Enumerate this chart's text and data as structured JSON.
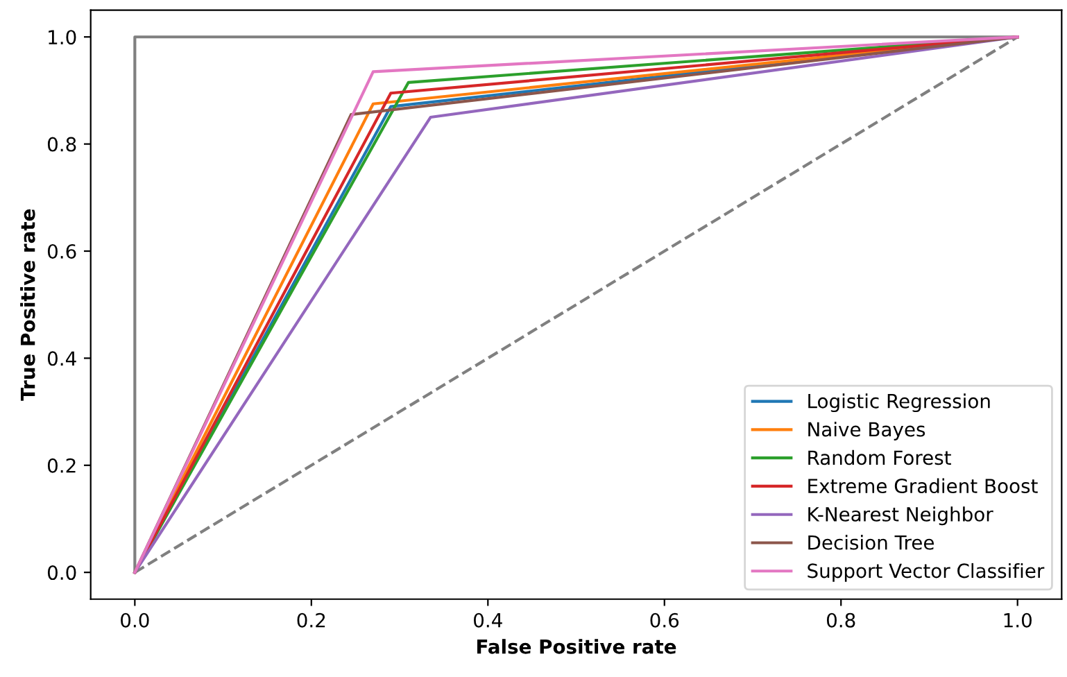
{
  "chart_data": {
    "type": "line",
    "xlabel": "False Positive rate",
    "ylabel": "True Positive rate",
    "xlim": [
      -0.05,
      1.05
    ],
    "ylim": [
      -0.05,
      1.05
    ],
    "xticks": [
      {
        "value": 0,
        "label": "0.0"
      },
      0.2,
      0.4,
      0.6,
      0.8,
      {
        "value": 1,
        "label": "1.0"
      }
    ],
    "yticks": [
      {
        "value": 0,
        "label": "0.0"
      },
      0.2,
      0.4,
      0.6,
      0.8,
      {
        "value": 1,
        "label": "1.0"
      }
    ],
    "grid": false,
    "legend": "bottom right",
    "marker": "none",
    "series": [
      {
        "color": "#808080",
        "line_style": "solid",
        "x": [
          0,
          0,
          1
        ],
        "values": [
          0,
          1,
          1
        ]
      },
      {
        "color": "#808080",
        "line_style": "dashed",
        "x": [
          0,
          1
        ],
        "values": [
          0,
          1
        ]
      },
      {
        "name": "Logistic Regression",
        "color": "#1f77b4",
        "x": [
          0,
          0.29,
          1
        ],
        "values": [
          0,
          0.87,
          1
        ]
      },
      {
        "name": "Naive Bayes",
        "color": "#ff7f0e",
        "x": [
          0,
          0.27,
          1
        ],
        "values": [
          0,
          0.875,
          1
        ]
      },
      {
        "name": "Random Forest",
        "color": "#2ca02c",
        "x": [
          0,
          0.31,
          1
        ],
        "values": [
          0,
          0.915,
          1
        ]
      },
      {
        "name": "Extreme Gradient Boost",
        "color": "#d62728",
        "x": [
          0,
          0.29,
          1
        ],
        "values": [
          0,
          0.895,
          1
        ]
      },
      {
        "name": "K-Nearest Neighbor",
        "color": "#9467bd",
        "x": [
          0,
          0.335,
          1
        ],
        "values": [
          0,
          0.85,
          1
        ]
      },
      {
        "name": "Decision Tree",
        "color": "#8c564b",
        "x": [
          0,
          0.245,
          1
        ],
        "values": [
          0,
          0.855,
          1
        ]
      },
      {
        "name": "Support Vector Classifier",
        "color": "#e377c2",
        "x": [
          0,
          0.27,
          1
        ],
        "values": [
          0,
          0.935,
          1
        ]
      }
    ]
  }
}
